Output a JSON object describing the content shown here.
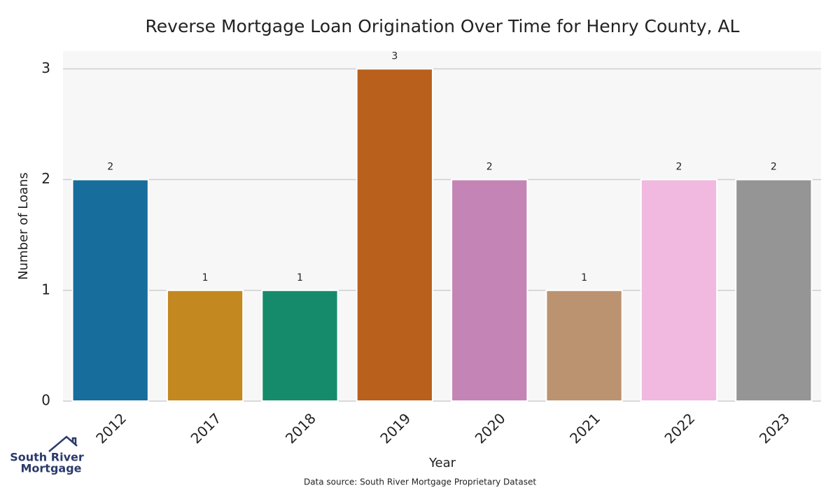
{
  "chart_data": {
    "type": "bar",
    "title": "Reverse Mortgage Loan Origination Over Time for Henry County, AL",
    "x_label": "Year",
    "y_label": "Number of Loans",
    "categories": [
      "2012",
      "2017",
      "2018",
      "2019",
      "2020",
      "2021",
      "2022",
      "2023"
    ],
    "values": [
      2,
      1,
      1,
      3,
      2,
      1,
      2,
      2
    ],
    "colors": [
      "#176d9c",
      "#c38820",
      "#168b6c",
      "#b8601c",
      "#c484b6",
      "#bb9370",
      "#f1b8e0",
      "#959595"
    ],
    "ylim": [
      0,
      3.16
    ],
    "yticks": [
      0,
      1,
      2,
      3
    ],
    "grid": true,
    "source": "Data source: South River Mortgage Proprietary Dataset",
    "logo": [
      "South River",
      "Mortgage"
    ]
  }
}
